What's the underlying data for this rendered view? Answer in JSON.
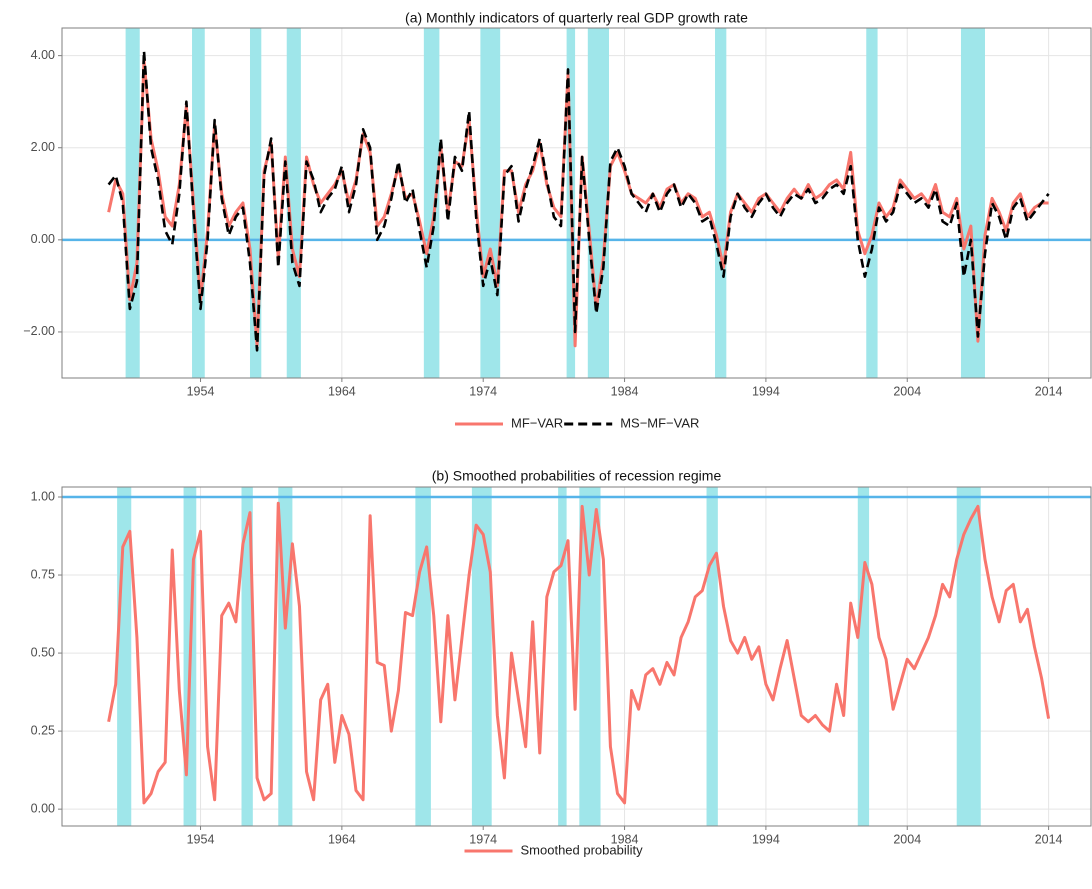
{
  "chart_data": [
    {
      "type": "line",
      "title": "(a) Monthly indicators of quarterly real GDP growth rate",
      "x": [
        1947.5,
        1948,
        1948.5,
        1949,
        1949.5,
        1950,
        1950.5,
        1951,
        1951.5,
        1952,
        1952.5,
        1953,
        1953.5,
        1954,
        1954.5,
        1955,
        1955.5,
        1956,
        1956.5,
        1957,
        1957.5,
        1958,
        1958.5,
        1959,
        1959.5,
        1960,
        1960.5,
        1961,
        1961.5,
        1962,
        1962.5,
        1963,
        1963.5,
        1964,
        1964.5,
        1965,
        1965.5,
        1966,
        1966.5,
        1967,
        1967.5,
        1968,
        1968.5,
        1969,
        1969.5,
        1970,
        1970.5,
        1971,
        1971.5,
        1972,
        1972.5,
        1973,
        1973.5,
        1974,
        1974.5,
        1975,
        1975.5,
        1976,
        1976.5,
        1977,
        1977.5,
        1978,
        1978.5,
        1979,
        1979.5,
        1980,
        1980.5,
        1981,
        1981.5,
        1982,
        1982.5,
        1983,
        1983.5,
        1984,
        1984.5,
        1985,
        1985.5,
        1986,
        1986.5,
        1987,
        1987.5,
        1988,
        1988.5,
        1989,
        1989.5,
        1990,
        1990.5,
        1991,
        1991.5,
        1992,
        1992.5,
        1993,
        1993.5,
        1994,
        1994.5,
        1995,
        1995.5,
        1996,
        1996.5,
        1997,
        1997.5,
        1998,
        1998.5,
        1999,
        1999.5,
        2000,
        2000.5,
        2001,
        2001.5,
        2002,
        2002.5,
        2003,
        2003.5,
        2004,
        2004.5,
        2005,
        2005.5,
        2006,
        2006.5,
        2007,
        2007.5,
        2008,
        2008.5,
        2009,
        2009.5,
        2010,
        2010.5,
        2011,
        2011.5,
        2012,
        2012.5,
        2013,
        2013.5,
        2014
      ],
      "series": [
        {
          "name": "MF−VAR",
          "color": "#f8766d",
          "dashed": false,
          "values": [
            0.6,
            1.3,
            1.0,
            -1.3,
            -0.5,
            3.9,
            2.2,
            1.5,
            0.5,
            0.3,
            1.2,
            2.9,
            0.8,
            -1.3,
            0.2,
            2.5,
            1.0,
            0.3,
            0.6,
            0.8,
            -0.2,
            -2.3,
            1.5,
            2.1,
            -0.4,
            1.8,
            -0.2,
            -0.8,
            1.8,
            1.2,
            0.8,
            1.0,
            1.2,
            1.5,
            0.8,
            1.3,
            2.3,
            1.9,
            0.3,
            0.5,
            1.0,
            1.6,
            0.9,
            1.0,
            0.4,
            -0.3,
            0.5,
            2.0,
            0.6,
            1.7,
            1.6,
            2.6,
            0.7,
            -0.8,
            -0.2,
            -1.0,
            1.5,
            1.5,
            0.6,
            1.2,
            1.5,
            2.1,
            1.2,
            0.7,
            0.5,
            3.6,
            -2.3,
            1.8,
            0.2,
            -1.5,
            -0.4,
            1.6,
            1.9,
            1.5,
            1.0,
            0.9,
            0.8,
            1.0,
            0.7,
            1.1,
            1.2,
            0.8,
            1.0,
            0.9,
            0.5,
            0.6,
            0.1,
            -0.6,
            0.6,
            1.0,
            0.8,
            0.6,
            0.9,
            1.0,
            0.8,
            0.6,
            0.9,
            1.1,
            0.9,
            1.2,
            0.9,
            1.0,
            1.2,
            1.3,
            1.1,
            1.9,
            0.2,
            -0.3,
            0.1,
            0.8,
            0.5,
            0.7,
            1.3,
            1.1,
            0.9,
            1.0,
            0.8,
            1.2,
            0.6,
            0.5,
            0.9,
            -0.2,
            0.3,
            -2.2,
            0.1,
            0.9,
            0.6,
            0.2,
            0.8,
            1.0,
            0.5,
            0.7,
            0.8,
            0.8
          ]
        },
        {
          "name": "MS−MF−VAR",
          "color": "#000000",
          "dashed": true,
          "values": [
            1.2,
            1.4,
            0.8,
            -1.5,
            -0.9,
            4.1,
            2.0,
            1.3,
            0.2,
            -0.1,
            1.0,
            3.0,
            0.6,
            -1.5,
            0.0,
            2.6,
            0.9,
            0.1,
            0.5,
            0.7,
            -0.5,
            -2.4,
            1.4,
            2.2,
            -0.6,
            1.7,
            -0.5,
            -1.0,
            1.7,
            1.3,
            0.6,
            0.9,
            1.1,
            1.6,
            0.6,
            1.2,
            2.4,
            2.0,
            0.0,
            0.3,
            0.9,
            1.7,
            0.8,
            1.1,
            0.2,
            -0.6,
            0.3,
            2.2,
            0.4,
            1.8,
            1.5,
            2.8,
            0.5,
            -1.0,
            -0.4,
            -1.2,
            1.4,
            1.6,
            0.4,
            1.1,
            1.6,
            2.2,
            1.3,
            0.5,
            0.3,
            3.7,
            -2.0,
            1.8,
            0.0,
            -1.6,
            -0.6,
            1.7,
            2.0,
            1.6,
            1.0,
            0.8,
            0.6,
            1.0,
            0.6,
            1.0,
            1.2,
            0.7,
            1.0,
            0.8,
            0.4,
            0.5,
            -0.1,
            -0.8,
            0.5,
            1.0,
            0.7,
            0.5,
            0.8,
            1.0,
            0.7,
            0.5,
            0.8,
            1.0,
            0.9,
            1.1,
            0.8,
            0.9,
            1.1,
            1.2,
            1.0,
            1.6,
            0.0,
            -0.8,
            -0.2,
            0.7,
            0.4,
            0.6,
            1.2,
            1.0,
            0.8,
            0.9,
            0.7,
            1.1,
            0.4,
            0.3,
            0.8,
            -0.8,
            0.0,
            -2.1,
            -0.3,
            0.8,
            0.5,
            0.0,
            0.7,
            0.9,
            0.4,
            0.6,
            0.8,
            1.0
          ]
        }
      ],
      "recessions": [
        [
          1948.7,
          1949.7
        ],
        [
          1953.4,
          1954.3
        ],
        [
          1957.5,
          1958.3
        ],
        [
          1960.1,
          1961.1
        ],
        [
          1969.8,
          1970.9
        ],
        [
          1973.8,
          1975.2
        ],
        [
          1979.9,
          1980.5
        ],
        [
          1981.4,
          1982.9
        ],
        [
          1990.4,
          1991.2
        ],
        [
          2001.1,
          2001.9
        ],
        [
          2007.8,
          2009.5
        ]
      ],
      "recession_color": "#9fe6ea",
      "hline": 0,
      "hline_color": "#56b4e9",
      "xlim": [
        1944.2,
        2017.0
      ],
      "xticks": [
        1954,
        1964,
        1974,
        1984,
        1994,
        2004,
        2014
      ],
      "ylim": [
        -3.0,
        4.6
      ],
      "yticks": [
        {
          "value": -2,
          "label": "−2.00"
        },
        {
          "value": 0,
          "label": "0.00"
        },
        {
          "value": 2,
          "label": "2.00"
        },
        {
          "value": 4,
          "label": "4.00"
        }
      ],
      "grid": true
    },
    {
      "type": "line",
      "title": "(b) Smoothed probabilities of recession regime",
      "x": [
        1947.5,
        1948,
        1948.5,
        1949,
        1949.5,
        1950,
        1950.5,
        1951,
        1951.5,
        1952,
        1952.5,
        1953,
        1953.5,
        1954,
        1954.5,
        1955,
        1955.5,
        1956,
        1956.5,
        1957,
        1957.5,
        1958,
        1958.5,
        1959,
        1959.5,
        1960,
        1960.5,
        1961,
        1961.5,
        1962,
        1962.5,
        1963,
        1963.5,
        1964,
        1964.5,
        1965,
        1965.5,
        1966,
        1966.5,
        1967,
        1967.5,
        1968,
        1968.5,
        1969,
        1969.5,
        1970,
        1970.5,
        1971,
        1971.5,
        1972,
        1972.5,
        1973,
        1973.5,
        1974,
        1974.5,
        1975,
        1975.5,
        1976,
        1976.5,
        1977,
        1977.5,
        1978,
        1978.5,
        1979,
        1979.5,
        1980,
        1980.5,
        1981,
        1981.5,
        1982,
        1982.5,
        1983,
        1983.5,
        1984,
        1984.5,
        1985,
        1985.5,
        1986,
        1986.5,
        1987,
        1987.5,
        1988,
        1988.5,
        1989,
        1989.5,
        1990,
        1990.5,
        1991,
        1991.5,
        1992,
        1992.5,
        1993,
        1993.5,
        1994,
        1994.5,
        1995,
        1995.5,
        1996,
        1996.5,
        1997,
        1997.5,
        1998,
        1998.5,
        1999,
        1999.5,
        2000,
        2000.5,
        2001,
        2001.5,
        2002,
        2002.5,
        2003,
        2003.5,
        2004,
        2004.5,
        2005,
        2005.5,
        2006,
        2006.5,
        2007,
        2007.5,
        2008,
        2008.5,
        2009,
        2009.5,
        2010,
        2010.5,
        2011,
        2011.5,
        2012,
        2012.5,
        2013,
        2013.5,
        2014
      ],
      "series": [
        {
          "name": "Smoothed probability",
          "color": "#f8766d",
          "dashed": false,
          "values": [
            0.28,
            0.4,
            0.84,
            0.89,
            0.55,
            0.02,
            0.05,
            0.12,
            0.15,
            0.83,
            0.38,
            0.11,
            0.8,
            0.89,
            0.2,
            0.03,
            0.62,
            0.66,
            0.6,
            0.85,
            0.95,
            0.1,
            0.03,
            0.05,
            0.98,
            0.58,
            0.85,
            0.65,
            0.12,
            0.03,
            0.35,
            0.4,
            0.15,
            0.3,
            0.24,
            0.06,
            0.03,
            0.94,
            0.47,
            0.46,
            0.25,
            0.38,
            0.63,
            0.62,
            0.76,
            0.84,
            0.62,
            0.28,
            0.62,
            0.35,
            0.55,
            0.75,
            0.91,
            0.88,
            0.76,
            0.3,
            0.1,
            0.5,
            0.35,
            0.2,
            0.6,
            0.18,
            0.68,
            0.76,
            0.78,
            0.86,
            0.32,
            0.97,
            0.75,
            0.96,
            0.8,
            0.2,
            0.05,
            0.02,
            0.38,
            0.32,
            0.43,
            0.45,
            0.4,
            0.47,
            0.43,
            0.55,
            0.6,
            0.68,
            0.7,
            0.78,
            0.82,
            0.65,
            0.54,
            0.5,
            0.55,
            0.48,
            0.52,
            0.4,
            0.35,
            0.45,
            0.54,
            0.42,
            0.3,
            0.28,
            0.3,
            0.27,
            0.25,
            0.4,
            0.3,
            0.66,
            0.55,
            0.79,
            0.72,
            0.55,
            0.48,
            0.32,
            0.4,
            0.48,
            0.45,
            0.5,
            0.55,
            0.62,
            0.72,
            0.68,
            0.8,
            0.88,
            0.93,
            0.97,
            0.8,
            0.68,
            0.6,
            0.7,
            0.72,
            0.6,
            0.64,
            0.52,
            0.42,
            0.29
          ]
        }
      ],
      "recessions": [
        [
          1948.1,
          1949.1
        ],
        [
          1952.8,
          1953.7
        ],
        [
          1956.9,
          1957.7
        ],
        [
          1959.5,
          1960.5
        ],
        [
          1969.2,
          1970.3
        ],
        [
          1973.2,
          1974.6
        ],
        [
          1979.3,
          1979.9
        ],
        [
          1980.8,
          1982.3
        ],
        [
          1989.8,
          1990.6
        ],
        [
          2000.5,
          2001.3
        ],
        [
          2007.5,
          2009.2
        ]
      ],
      "recession_color": "#9fe6ea",
      "hline": 1,
      "hline_color": "#56b4e9",
      "xlim": [
        1944.2,
        2017.0
      ],
      "xticks": [
        1954,
        1964,
        1974,
        1984,
        1994,
        2004,
        2014
      ],
      "ylim": [
        -0.054,
        1.032
      ],
      "yticks": [
        {
          "value": 0,
          "label": "0.00"
        },
        {
          "value": 0.25,
          "label": "0.25"
        },
        {
          "value": 0.5,
          "label": "0.50"
        },
        {
          "value": 0.75,
          "label": "0.75"
        },
        {
          "value": 1,
          "label": "1.00"
        }
      ],
      "grid": true
    }
  ]
}
